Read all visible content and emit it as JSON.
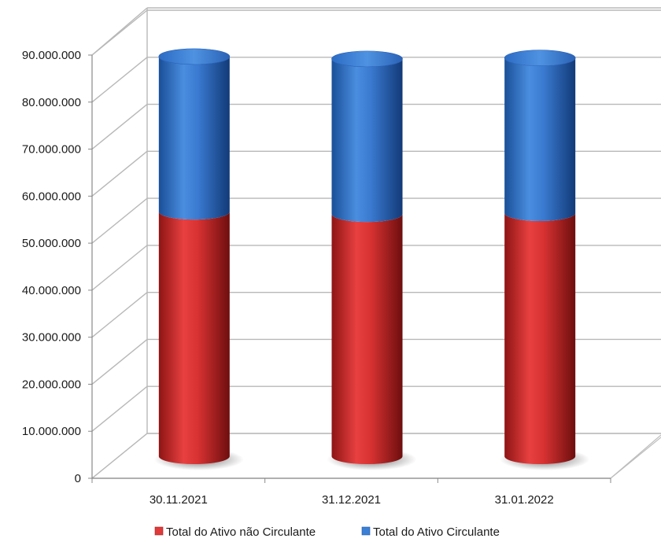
{
  "chart_data": {
    "type": "bar",
    "stacked": true,
    "style": "3d-cylinder",
    "categories": [
      "30.11.2021",
      "31.12.2021",
      "31.01.2022"
    ],
    "series": [
      {
        "name": "Total do Ativo não Circulante",
        "values": [
          52000000,
          51500000,
          51700000
        ],
        "color": "#e03a3a"
      },
      {
        "name": "Total do Ativo Circulante",
        "values": [
          33000000,
          33000000,
          33000000
        ],
        "color": "#3b7fd6"
      }
    ],
    "ylim": [
      0,
      90000000
    ],
    "yticks": [
      "0",
      "10.000.000",
      "20.000.000",
      "30.000.000",
      "40.000.000",
      "50.000.000",
      "60.000.000",
      "70.000.000",
      "80.000.000",
      "90.000.000"
    ],
    "grid": true,
    "legend_position": "bottom"
  }
}
